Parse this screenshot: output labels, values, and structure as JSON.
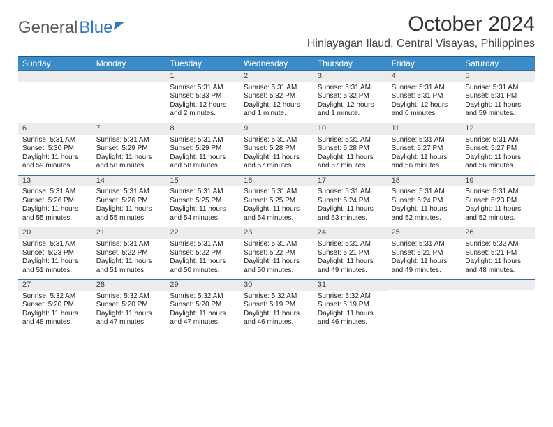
{
  "logo": {
    "part1": "General",
    "part2": "Blue"
  },
  "header": {
    "title": "October 2024",
    "location": "Hinlayagan Ilaud, Central Visayas, Philippines"
  },
  "days_of_week": [
    "Sunday",
    "Monday",
    "Tuesday",
    "Wednesday",
    "Thursday",
    "Friday",
    "Saturday"
  ],
  "colors": {
    "header_bg": "#3b8bc9",
    "header_border": "#1f5a8c",
    "daynum_bg": "#ececec",
    "text": "#222222"
  },
  "fonts": {
    "title_size_pt": 30,
    "location_size_pt": 16,
    "dayheader_size_pt": 12,
    "daynum_size_pt": 11,
    "cell_size_pt": 10
  },
  "weeks": [
    [
      null,
      null,
      {
        "n": "1",
        "rise": "Sunrise: 5:31 AM",
        "set": "Sunset: 5:33 PM",
        "dl1": "Daylight: 12 hours",
        "dl2": "and 2 minutes."
      },
      {
        "n": "2",
        "rise": "Sunrise: 5:31 AM",
        "set": "Sunset: 5:32 PM",
        "dl1": "Daylight: 12 hours",
        "dl2": "and 1 minute."
      },
      {
        "n": "3",
        "rise": "Sunrise: 5:31 AM",
        "set": "Sunset: 5:32 PM",
        "dl1": "Daylight: 12 hours",
        "dl2": "and 1 minute."
      },
      {
        "n": "4",
        "rise": "Sunrise: 5:31 AM",
        "set": "Sunset: 5:31 PM",
        "dl1": "Daylight: 12 hours",
        "dl2": "and 0 minutes."
      },
      {
        "n": "5",
        "rise": "Sunrise: 5:31 AM",
        "set": "Sunset: 5:31 PM",
        "dl1": "Daylight: 11 hours",
        "dl2": "and 59 minutes."
      }
    ],
    [
      {
        "n": "6",
        "rise": "Sunrise: 5:31 AM",
        "set": "Sunset: 5:30 PM",
        "dl1": "Daylight: 11 hours",
        "dl2": "and 59 minutes."
      },
      {
        "n": "7",
        "rise": "Sunrise: 5:31 AM",
        "set": "Sunset: 5:29 PM",
        "dl1": "Daylight: 11 hours",
        "dl2": "and 58 minutes."
      },
      {
        "n": "8",
        "rise": "Sunrise: 5:31 AM",
        "set": "Sunset: 5:29 PM",
        "dl1": "Daylight: 11 hours",
        "dl2": "and 58 minutes."
      },
      {
        "n": "9",
        "rise": "Sunrise: 5:31 AM",
        "set": "Sunset: 5:28 PM",
        "dl1": "Daylight: 11 hours",
        "dl2": "and 57 minutes."
      },
      {
        "n": "10",
        "rise": "Sunrise: 5:31 AM",
        "set": "Sunset: 5:28 PM",
        "dl1": "Daylight: 11 hours",
        "dl2": "and 57 minutes."
      },
      {
        "n": "11",
        "rise": "Sunrise: 5:31 AM",
        "set": "Sunset: 5:27 PM",
        "dl1": "Daylight: 11 hours",
        "dl2": "and 56 minutes."
      },
      {
        "n": "12",
        "rise": "Sunrise: 5:31 AM",
        "set": "Sunset: 5:27 PM",
        "dl1": "Daylight: 11 hours",
        "dl2": "and 56 minutes."
      }
    ],
    [
      {
        "n": "13",
        "rise": "Sunrise: 5:31 AM",
        "set": "Sunset: 5:26 PM",
        "dl1": "Daylight: 11 hours",
        "dl2": "and 55 minutes."
      },
      {
        "n": "14",
        "rise": "Sunrise: 5:31 AM",
        "set": "Sunset: 5:26 PM",
        "dl1": "Daylight: 11 hours",
        "dl2": "and 55 minutes."
      },
      {
        "n": "15",
        "rise": "Sunrise: 5:31 AM",
        "set": "Sunset: 5:25 PM",
        "dl1": "Daylight: 11 hours",
        "dl2": "and 54 minutes."
      },
      {
        "n": "16",
        "rise": "Sunrise: 5:31 AM",
        "set": "Sunset: 5:25 PM",
        "dl1": "Daylight: 11 hours",
        "dl2": "and 54 minutes."
      },
      {
        "n": "17",
        "rise": "Sunrise: 5:31 AM",
        "set": "Sunset: 5:24 PM",
        "dl1": "Daylight: 11 hours",
        "dl2": "and 53 minutes."
      },
      {
        "n": "18",
        "rise": "Sunrise: 5:31 AM",
        "set": "Sunset: 5:24 PM",
        "dl1": "Daylight: 11 hours",
        "dl2": "and 52 minutes."
      },
      {
        "n": "19",
        "rise": "Sunrise: 5:31 AM",
        "set": "Sunset: 5:23 PM",
        "dl1": "Daylight: 11 hours",
        "dl2": "and 52 minutes."
      }
    ],
    [
      {
        "n": "20",
        "rise": "Sunrise: 5:31 AM",
        "set": "Sunset: 5:23 PM",
        "dl1": "Daylight: 11 hours",
        "dl2": "and 51 minutes."
      },
      {
        "n": "21",
        "rise": "Sunrise: 5:31 AM",
        "set": "Sunset: 5:22 PM",
        "dl1": "Daylight: 11 hours",
        "dl2": "and 51 minutes."
      },
      {
        "n": "22",
        "rise": "Sunrise: 5:31 AM",
        "set": "Sunset: 5:22 PM",
        "dl1": "Daylight: 11 hours",
        "dl2": "and 50 minutes."
      },
      {
        "n": "23",
        "rise": "Sunrise: 5:31 AM",
        "set": "Sunset: 5:22 PM",
        "dl1": "Daylight: 11 hours",
        "dl2": "and 50 minutes."
      },
      {
        "n": "24",
        "rise": "Sunrise: 5:31 AM",
        "set": "Sunset: 5:21 PM",
        "dl1": "Daylight: 11 hours",
        "dl2": "and 49 minutes."
      },
      {
        "n": "25",
        "rise": "Sunrise: 5:31 AM",
        "set": "Sunset: 5:21 PM",
        "dl1": "Daylight: 11 hours",
        "dl2": "and 49 minutes."
      },
      {
        "n": "26",
        "rise": "Sunrise: 5:32 AM",
        "set": "Sunset: 5:21 PM",
        "dl1": "Daylight: 11 hours",
        "dl2": "and 48 minutes."
      }
    ],
    [
      {
        "n": "27",
        "rise": "Sunrise: 5:32 AM",
        "set": "Sunset: 5:20 PM",
        "dl1": "Daylight: 11 hours",
        "dl2": "and 48 minutes."
      },
      {
        "n": "28",
        "rise": "Sunrise: 5:32 AM",
        "set": "Sunset: 5:20 PM",
        "dl1": "Daylight: 11 hours",
        "dl2": "and 47 minutes."
      },
      {
        "n": "29",
        "rise": "Sunrise: 5:32 AM",
        "set": "Sunset: 5:20 PM",
        "dl1": "Daylight: 11 hours",
        "dl2": "and 47 minutes."
      },
      {
        "n": "30",
        "rise": "Sunrise: 5:32 AM",
        "set": "Sunset: 5:19 PM",
        "dl1": "Daylight: 11 hours",
        "dl2": "and 46 minutes."
      },
      {
        "n": "31",
        "rise": "Sunrise: 5:32 AM",
        "set": "Sunset: 5:19 PM",
        "dl1": "Daylight: 11 hours",
        "dl2": "and 46 minutes."
      },
      null,
      null
    ]
  ]
}
